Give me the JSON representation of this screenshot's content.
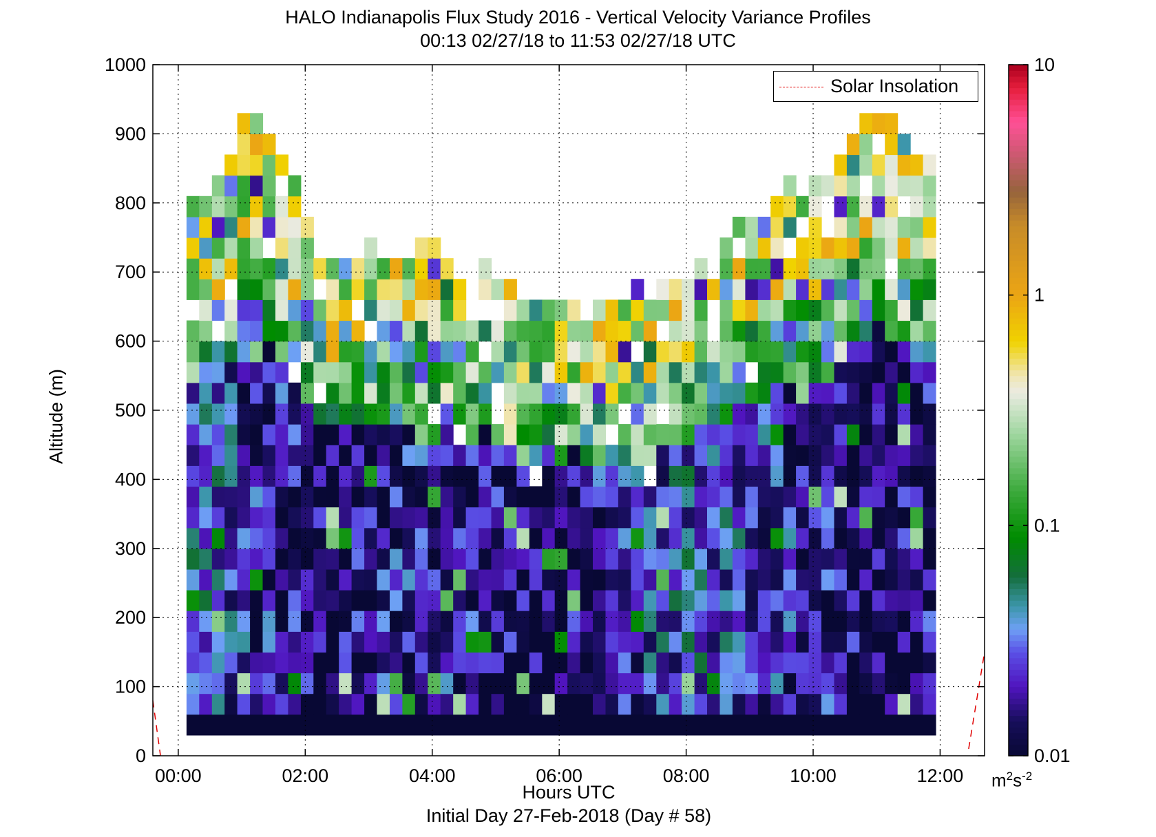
{
  "chart_data": {
    "type": "heatmap",
    "title": "HALO Indianapolis Flux Study 2016 - Vertical Velocity Variance Profiles",
    "subtitle": "00:13 02/27/18 to 11:53 02/27/18  UTC",
    "xlabel": "Hours UTC",
    "xlabel_sub": "Initial Day 27-Feb-2018 (Day # 58)",
    "ylabel": "Altitude (m)",
    "xlim": [
      -0.4,
      12.7
    ],
    "ylim": [
      0,
      1000
    ],
    "x_tick_values": [
      0,
      2,
      4,
      6,
      8,
      10,
      12
    ],
    "x_tick_labels": [
      "00:00",
      "02:00",
      "04:00",
      "06:00",
      "08:00",
      "10:00",
      "12:00"
    ],
    "y_tick_values": [
      0,
      100,
      200,
      300,
      400,
      500,
      600,
      700,
      800,
      900,
      1000
    ],
    "y_tick_labels": [
      "0",
      "100",
      "200",
      "300",
      "400",
      "500",
      "600",
      "700",
      "800",
      "900",
      "1000"
    ],
    "grid": true,
    "colorbar": {
      "scale": "log",
      "range": [
        0.01,
        10
      ],
      "tick_values": [
        0.01,
        0.1,
        1,
        10
      ],
      "tick_labels": [
        "0.01",
        "0.1",
        "1",
        "10"
      ],
      "unit_base": "m",
      "unit_exp1": "2",
      "unit_mid": "s",
      "unit_exp2": "-2"
    },
    "legend": {
      "position": "top-right",
      "entries": [
        {
          "label": "Solar Insolation",
          "color": "#e00000",
          "style": "dashed"
        }
      ]
    },
    "grid_spec": {
      "x_start": 0.13,
      "x_step": 0.2,
      "n_cols": 59,
      "y_start": 30,
      "y_step": 30,
      "n_rows": 31
    },
    "profiles": [
      {
        "x": 0.23,
        "top_m": 800,
        "color_top": "#9fd49f",
        "mid_value": 0.09,
        "low_value": 0.03
      },
      {
        "x": 1.13,
        "top_m": 960,
        "color_top": "#9fd49f",
        "mid_value": 0.1,
        "low_value": 0.02
      },
      {
        "x": 2.23,
        "top_m": 710,
        "color_top": "#e8a21e",
        "mid_value": 0.12,
        "low_value": 0.012
      },
      {
        "x": 3.73,
        "top_m": 740,
        "color_top": "#9fd49f",
        "mid_value": 0.1,
        "low_value": 0.02
      },
      {
        "x": 5.73,
        "top_m": 650,
        "color_top": "#f1e9c4",
        "mid_value": 0.12,
        "low_value": 0.011
      },
      {
        "x": 7.93,
        "top_m": 700,
        "color_top": "#0a8c0a",
        "mid_value": 0.08,
        "low_value": 0.03
      },
      {
        "x": 10.93,
        "top_m": 930,
        "color_top": "#9fd49f",
        "mid_value": 0.1,
        "low_value": 0.012
      },
      {
        "x": 11.73,
        "top_m": 860,
        "color_top": "#3fa83f",
        "mid_value": 0.1,
        "low_value": 0.015
      }
    ],
    "solar_insolation": {
      "left": [
        [
          -0.4,
          80
        ],
        [
          -0.28,
          0
        ]
      ],
      "right": [
        [
          12.45,
          10
        ],
        [
          12.7,
          150
        ]
      ]
    }
  }
}
